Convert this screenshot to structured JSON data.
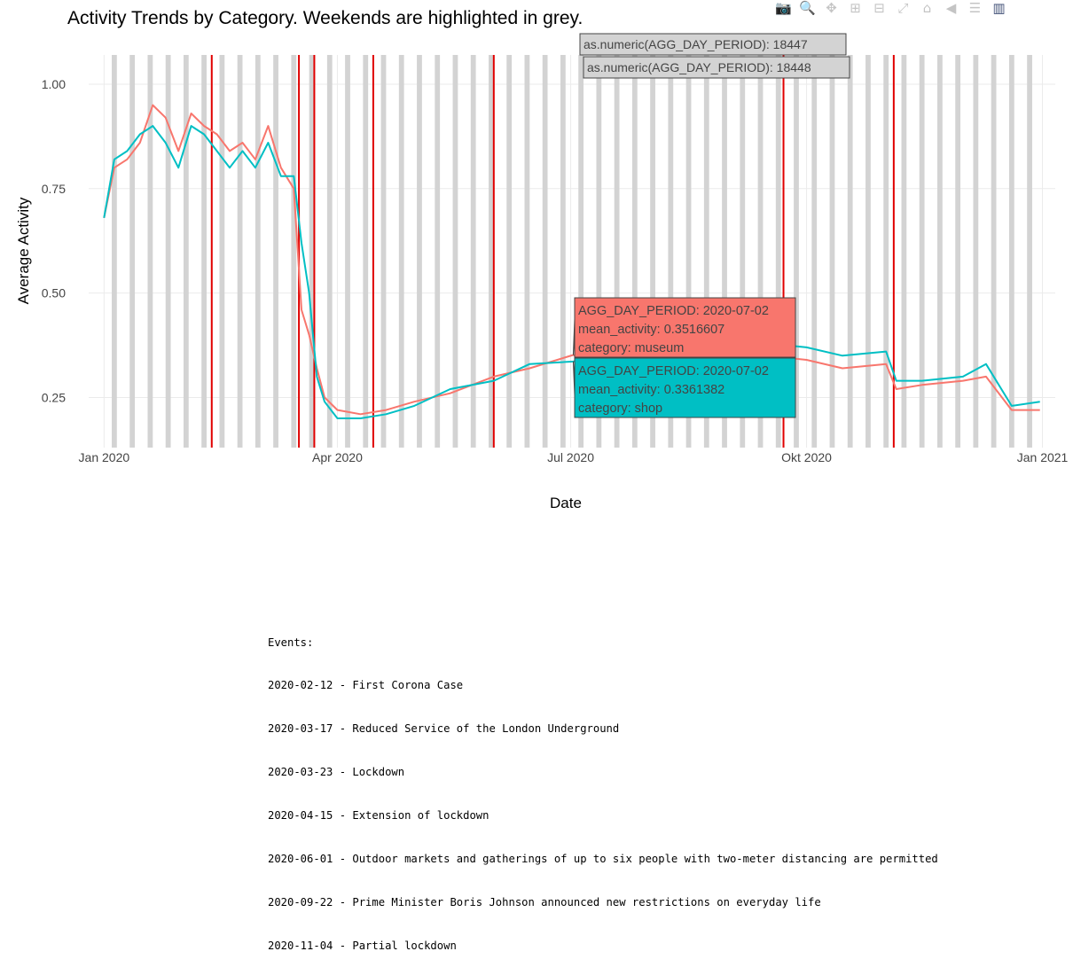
{
  "title": "Activity Trends by Category. Weekends are highlighted in grey.",
  "modebar": {
    "buttons": [
      {
        "icon": "camera-icon",
        "glyph": "📷"
      },
      {
        "icon": "zoom-icon",
        "glyph": "🔍"
      },
      {
        "icon": "pan-icon",
        "glyph": "✥"
      },
      {
        "icon": "zoom-in-icon",
        "glyph": "⊞"
      },
      {
        "icon": "zoom-out-icon",
        "glyph": "⊟"
      },
      {
        "icon": "autoscale-icon",
        "glyph": "⤢"
      },
      {
        "icon": "home-icon",
        "glyph": "⌂"
      },
      {
        "icon": "hover-closest-icon",
        "glyph": "◀"
      },
      {
        "icon": "hover-compare-icon",
        "glyph": "☰"
      },
      {
        "icon": "plotly-logo-icon",
        "glyph": "▥"
      }
    ]
  },
  "colors": {
    "museum": "#f8766d",
    "shop": "#00bfc4",
    "weekend": "#d3d3d3",
    "event_line": "#e00000",
    "grid": "#ebebeb"
  },
  "chart_data": {
    "type": "line",
    "xlabel": "Date",
    "ylabel": "Average Activity",
    "x_range": [
      "2019-12-26",
      "2021-01-06"
    ],
    "ylim": [
      0.13,
      1.07
    ],
    "x_ticks": [
      {
        "date": "2020-01-01",
        "label": "Jan 2020"
      },
      {
        "date": "2020-04-01",
        "label": "Apr 2020"
      },
      {
        "date": "2020-07-01",
        "label": "Jul 2020"
      },
      {
        "date": "2020-10-01",
        "label": "Okt 2020"
      },
      {
        "date": "2021-01-01",
        "label": "Jan 2021"
      }
    ],
    "y_ticks": [
      {
        "value": 0.25,
        "label": "0.25"
      },
      {
        "value": 0.5,
        "label": "0.50"
      },
      {
        "value": 0.75,
        "label": "0.75"
      },
      {
        "value": 1.0,
        "label": "1.00"
      }
    ],
    "weekend_band": {
      "start": "2020-01-04",
      "end": "2020-12-27"
    },
    "event_dates": [
      "2020-02-12",
      "2020-03-17",
      "2020-03-23",
      "2020-04-15",
      "2020-06-01",
      "2020-09-22",
      "2020-11-04"
    ],
    "series": [
      {
        "name": "museum",
        "x": [
          "2020-01-01",
          "2020-01-05",
          "2020-01-10",
          "2020-01-15",
          "2020-01-20",
          "2020-01-25",
          "2020-01-30",
          "2020-02-04",
          "2020-02-09",
          "2020-02-14",
          "2020-02-19",
          "2020-02-24",
          "2020-02-29",
          "2020-03-05",
          "2020-03-10",
          "2020-03-15",
          "2020-03-18",
          "2020-03-21",
          "2020-03-24",
          "2020-03-27",
          "2020-04-01",
          "2020-04-10",
          "2020-04-20",
          "2020-05-01",
          "2020-05-15",
          "2020-06-01",
          "2020-06-15",
          "2020-07-02",
          "2020-07-15",
          "2020-08-01",
          "2020-08-15",
          "2020-09-01",
          "2020-09-15",
          "2020-10-01",
          "2020-10-15",
          "2020-11-01",
          "2020-11-05",
          "2020-11-15",
          "2020-12-01",
          "2020-12-10",
          "2020-12-20",
          "2020-12-31"
        ],
        "values": [
          0.68,
          0.8,
          0.82,
          0.86,
          0.95,
          0.92,
          0.84,
          0.93,
          0.9,
          0.88,
          0.84,
          0.86,
          0.82,
          0.9,
          0.8,
          0.75,
          0.46,
          0.4,
          0.32,
          0.25,
          0.22,
          0.21,
          0.22,
          0.24,
          0.26,
          0.3,
          0.32,
          0.3516607,
          0.33,
          0.34,
          0.33,
          0.33,
          0.35,
          0.34,
          0.32,
          0.33,
          0.27,
          0.28,
          0.29,
          0.3,
          0.22,
          0.22
        ]
      },
      {
        "name": "shop",
        "x": [
          "2020-01-01",
          "2020-01-05",
          "2020-01-10",
          "2020-01-15",
          "2020-01-20",
          "2020-01-25",
          "2020-01-30",
          "2020-02-04",
          "2020-02-09",
          "2020-02-14",
          "2020-02-19",
          "2020-02-24",
          "2020-02-29",
          "2020-03-05",
          "2020-03-10",
          "2020-03-15",
          "2020-03-18",
          "2020-03-21",
          "2020-03-24",
          "2020-03-27",
          "2020-04-01",
          "2020-04-10",
          "2020-04-20",
          "2020-05-01",
          "2020-05-15",
          "2020-06-01",
          "2020-06-15",
          "2020-07-02",
          "2020-07-15",
          "2020-08-01",
          "2020-08-15",
          "2020-09-01",
          "2020-09-15",
          "2020-10-01",
          "2020-10-15",
          "2020-11-01",
          "2020-11-05",
          "2020-11-15",
          "2020-12-01",
          "2020-12-10",
          "2020-12-20",
          "2020-12-31"
        ],
        "values": [
          0.68,
          0.82,
          0.84,
          0.88,
          0.9,
          0.86,
          0.8,
          0.9,
          0.88,
          0.84,
          0.8,
          0.84,
          0.8,
          0.86,
          0.78,
          0.78,
          0.62,
          0.5,
          0.3,
          0.24,
          0.2,
          0.2,
          0.21,
          0.23,
          0.27,
          0.29,
          0.33,
          0.3361382,
          0.35,
          0.37,
          0.36,
          0.36,
          0.38,
          0.37,
          0.35,
          0.36,
          0.29,
          0.29,
          0.3,
          0.33,
          0.23,
          0.24
        ]
      }
    ],
    "tooltips": [
      {
        "label": "as.numeric(AGG_DAY_PERIOD): 18447"
      },
      {
        "label": "as.numeric(AGG_DAY_PERIOD): 18448"
      },
      {
        "lines": [
          "AGG_DAY_PERIOD: 2020-07-02",
          "mean_activity: 0.3516607",
          "category: museum"
        ],
        "series": "museum"
      },
      {
        "lines": [
          "AGG_DAY_PERIOD: 2020-07-02",
          "mean_activity: 0.3361382",
          "category: shop"
        ],
        "series": "shop"
      }
    ]
  },
  "events": {
    "heading": "Events:",
    "items": [
      "2020-02-12 - First Corona Case",
      "2020-03-17 - Reduced Service of the London Underground",
      "2020-03-23 - Lockdown",
      "2020-04-15 - Extension of lockdown",
      "2020-06-01 - Outdoor markets and gatherings of up to six people with two-meter distancing are permitted",
      "2020-09-22 - Prime Minister Boris Johnson announced new restrictions on everyday life",
      "2020-11-04 - Partial lockdown"
    ]
  }
}
